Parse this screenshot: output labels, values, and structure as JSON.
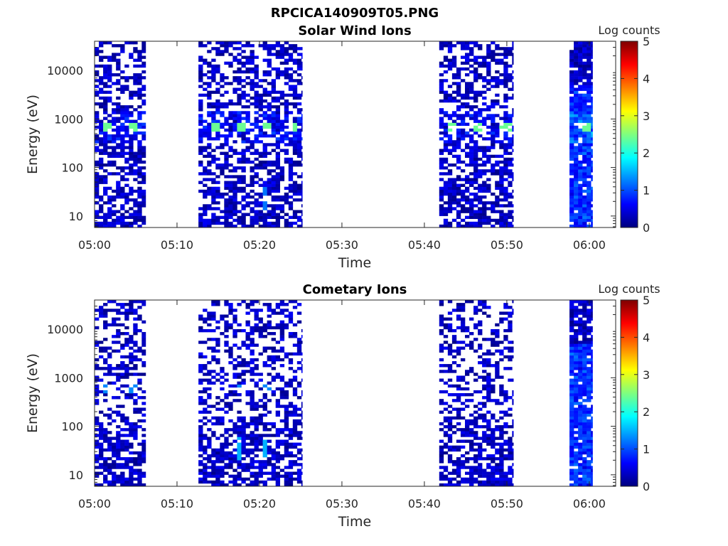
{
  "figure": {
    "title": "RPCICA140909T05.PNG"
  },
  "colormap": {
    "name": "jet",
    "stops": [
      "#00007f",
      "#0000ff",
      "#007fff",
      "#00ffff",
      "#7fff7f",
      "#ffff00",
      "#ff7f00",
      "#ff0000",
      "#7f0000"
    ]
  },
  "chart_data": [
    {
      "type": "heatmap",
      "title": "Solar Wind Ions",
      "xlabel": "Time",
      "ylabel": "Energy (eV)",
      "x_ticks": [
        "05:00",
        "05:10",
        "05:20",
        "05:30",
        "05:40",
        "05:50",
        "06:00"
      ],
      "y_ticks": [
        "10",
        "100",
        "1000",
        "10000"
      ],
      "y_scale": "log",
      "ylim": [
        5.8,
        40000
      ],
      "colorbar_label": "Log counts",
      "colorbar_ticks": [
        "0",
        "1",
        "2",
        "3",
        "4",
        "5"
      ],
      "clim": [
        0,
        5
      ],
      "active_intervals_min": [
        [
          0,
          6.2
        ],
        [
          12.6,
          25.2
        ],
        [
          41.8,
          50.8
        ],
        [
          57.6,
          60.4
        ]
      ],
      "peak_energy_eV": 650,
      "peak_times_min": [
        1.2,
        4.4,
        14.2,
        17.4,
        20.6,
        23.8,
        43.2,
        46.4,
        49.6,
        59.4
      ],
      "peak_level_log": 2.4
    },
    {
      "type": "heatmap",
      "title": "Cometary Ions",
      "xlabel": "Time",
      "ylabel": "Energy (eV)",
      "x_ticks": [
        "05:00",
        "05:10",
        "05:20",
        "05:30",
        "05:40",
        "05:50",
        "06:00"
      ],
      "y_ticks": [
        "10",
        "100",
        "1000",
        "10000"
      ],
      "y_scale": "log",
      "ylim": [
        5.8,
        40000
      ],
      "colorbar_label": "Log counts",
      "colorbar_ticks": [
        "0",
        "1",
        "2",
        "3",
        "4",
        "5"
      ],
      "clim": [
        0,
        5
      ],
      "active_intervals_min": [
        [
          0,
          6.2
        ],
        [
          12.6,
          25.2
        ],
        [
          41.8,
          50.8
        ],
        [
          57.6,
          60.4
        ]
      ],
      "peak_energy_eV": 600,
      "peak_times_min": [
        1.2,
        4.4,
        17.4,
        20.6
      ],
      "peak_level_log": 1.3
    }
  ]
}
